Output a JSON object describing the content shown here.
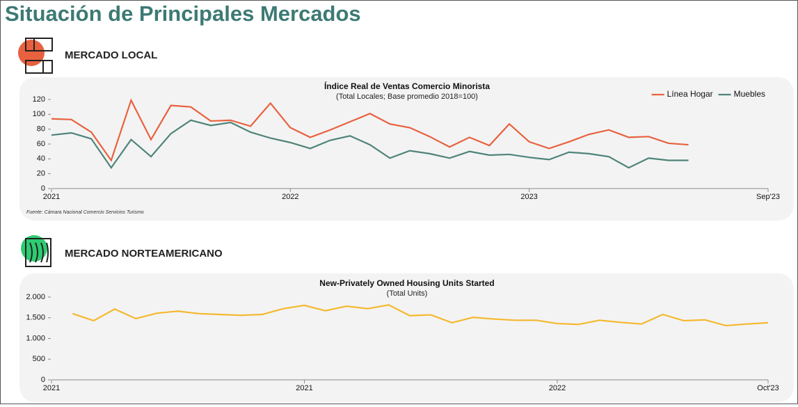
{
  "title": "Situación de Principales Mercados",
  "sections": [
    {
      "heading": "MERCADO LOCAL"
    },
    {
      "heading": "MERCADO NORTEAMERICANO"
    }
  ],
  "chart_data": [
    {
      "type": "line",
      "title": "Índice Real de Ventas Comercio Minorista",
      "subtitle": "(Total Locales; Base promedio 2018=100)",
      "source": "Fuente: Cámara Nacional Comercio Servicios Turismo",
      "categories": [
        "2021",
        null,
        null,
        null,
        null,
        null,
        null,
        null,
        null,
        null,
        null,
        null,
        "2022",
        null,
        null,
        null,
        null,
        null,
        null,
        null,
        null,
        null,
        null,
        null,
        "2023",
        null,
        null,
        null,
        null,
        null,
        null,
        null,
        null,
        null,
        null,
        null,
        "Sep'23"
      ],
      "series": [
        {
          "name": "Línea Hogar",
          "color": "#e8613f",
          "values": [
            94,
            93,
            76,
            38,
            119,
            66,
            112,
            110,
            91,
            92,
            84,
            115,
            82,
            69,
            79,
            90,
            101,
            87,
            82,
            70,
            56,
            69,
            58,
            87,
            63,
            54,
            63,
            73,
            79,
            69,
            70,
            61,
            59,
            null,
            null,
            null,
            null
          ]
        },
        {
          "name": "Muebles",
          "color": "#4e8479",
          "values": [
            72,
            75,
            67,
            28,
            66,
            43,
            74,
            92,
            85,
            89,
            76,
            68,
            62,
            54,
            65,
            71,
            59,
            41,
            51,
            47,
            41,
            50,
            45,
            46,
            42,
            39,
            49,
            47,
            43,
            28,
            41,
            38,
            38,
            null,
            null,
            null,
            null
          ]
        }
      ],
      "ylim": [
        0,
        120
      ],
      "yticks": [
        0,
        20,
        40,
        60,
        80,
        100,
        120
      ],
      "legend": "upper right"
    },
    {
      "type": "line",
      "title": "New-Privately Owned Housing Units Started",
      "subtitle": "(Total Units)",
      "categories": [
        "2021",
        null,
        null,
        null,
        null,
        null,
        null,
        null,
        null,
        null,
        null,
        null,
        "2021",
        null,
        null,
        null,
        null,
        null,
        null,
        null,
        null,
        null,
        null,
        null,
        "2022",
        null,
        null,
        null,
        null,
        null,
        null,
        null,
        null,
        null,
        "Oct'23"
      ],
      "series": [
        {
          "color": "#f5b82e",
          "values": [
            null,
            1600,
            1430,
            1710,
            1480,
            1610,
            1660,
            1600,
            1580,
            1560,
            1580,
            1720,
            1800,
            1670,
            1780,
            1720,
            1810,
            1550,
            1570,
            1380,
            1510,
            1470,
            1440,
            1440,
            1360,
            1340,
            1440,
            1390,
            1350,
            1580,
            1430,
            1450,
            1310,
            1350,
            1380
          ]
        }
      ],
      "ylim": [
        0,
        2000
      ],
      "yticks": [
        0,
        500,
        {
          "value": 1000,
          "label": "1.000"
        },
        {
          "value": 1500,
          "label": "1.500"
        },
        {
          "value": 2000,
          "label": "2.000"
        }
      ]
    }
  ]
}
